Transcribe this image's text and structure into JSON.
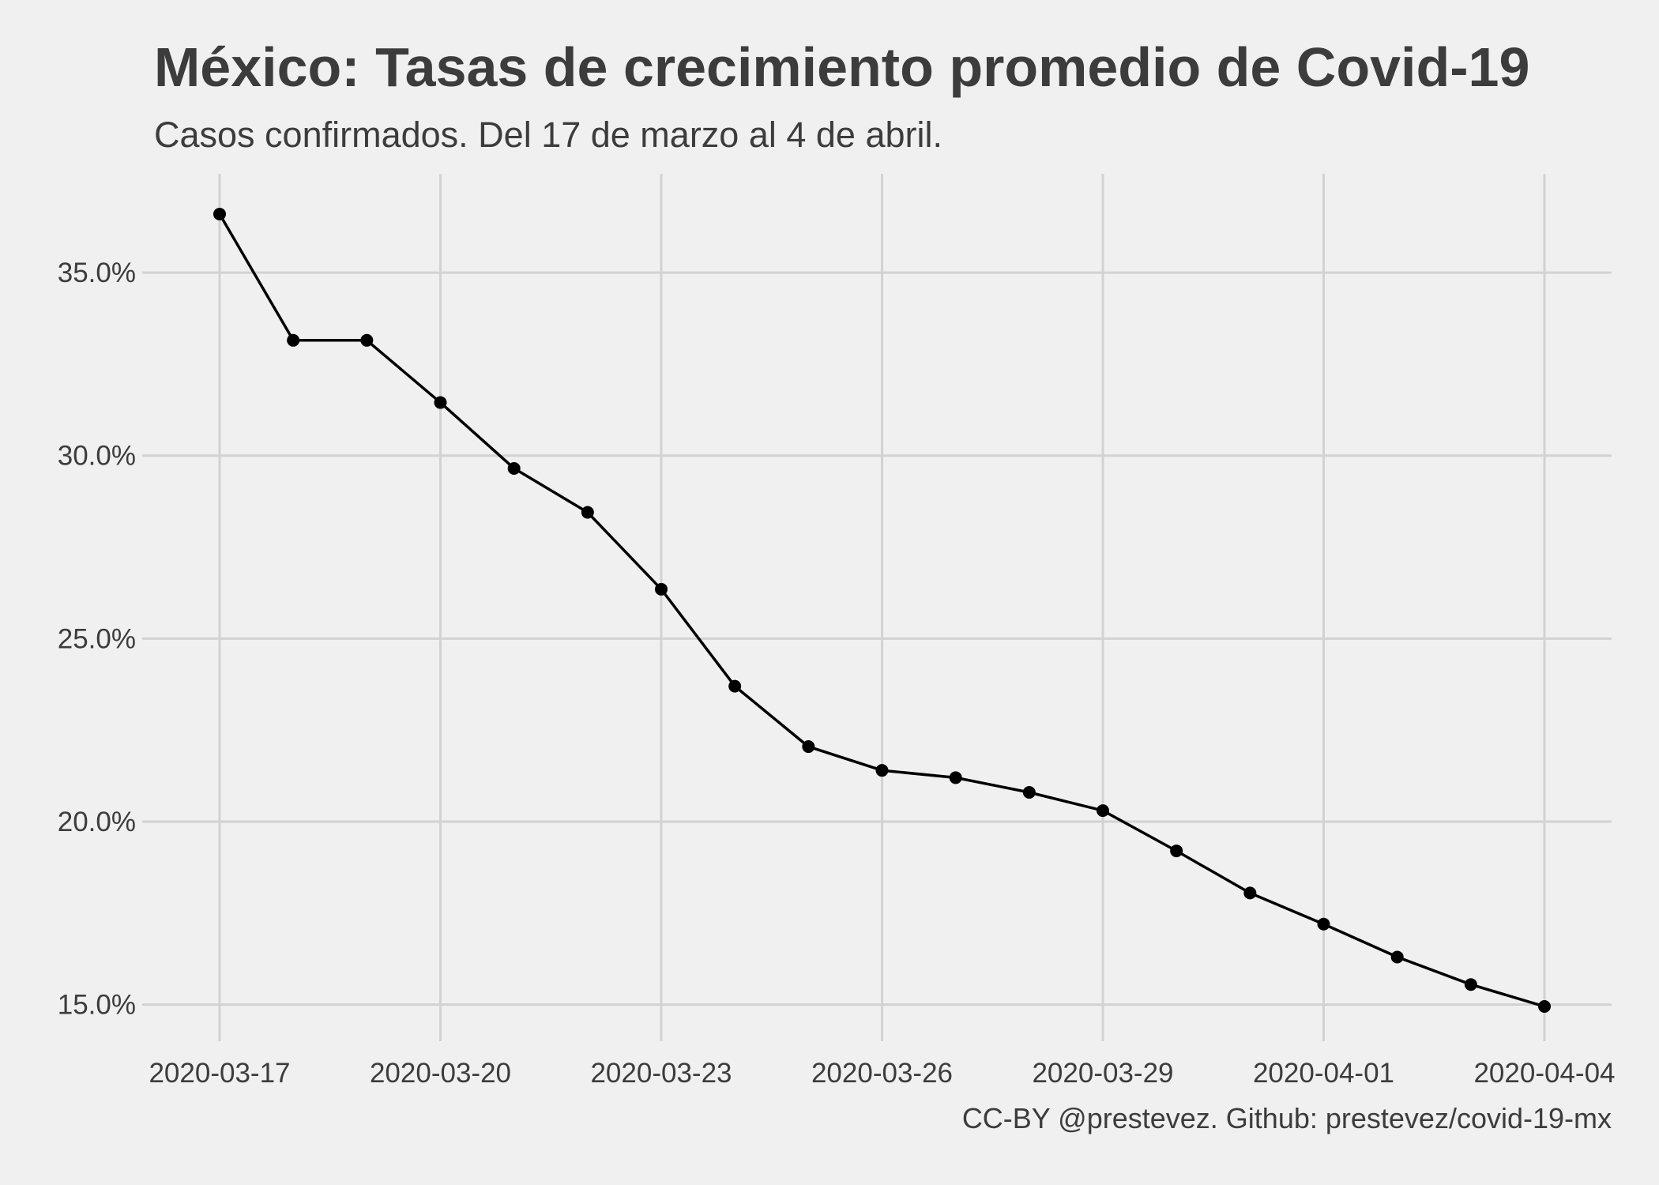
{
  "chart_data": {
    "type": "line",
    "title": "México: Tasas de crecimiento promedio de Covid-19",
    "subtitle": "Casos confirmados. Del 17 de marzo al 4 de abril.",
    "caption": "CC-BY @prestevez. Github: prestevez/covid-19-mx",
    "xlabel": "",
    "ylabel": "",
    "x": [
      "2020-03-17",
      "2020-03-18",
      "2020-03-19",
      "2020-03-20",
      "2020-03-21",
      "2020-03-22",
      "2020-03-23",
      "2020-03-24",
      "2020-03-25",
      "2020-03-26",
      "2020-03-27",
      "2020-03-28",
      "2020-03-29",
      "2020-03-30",
      "2020-03-31",
      "2020-04-01",
      "2020-04-02",
      "2020-04-03",
      "2020-04-04"
    ],
    "series": [
      {
        "values": [
          36.6,
          33.15,
          33.15,
          31.45,
          29.65,
          28.45,
          26.35,
          23.7,
          22.05,
          21.4,
          21.2,
          20.8,
          20.3,
          19.2,
          18.05,
          17.2,
          16.3,
          15.55,
          14.95
        ]
      }
    ],
    "ylim": [
      14.0,
      37.7
    ],
    "y_ticks": [
      15.0,
      20.0,
      25.0,
      30.0,
      35.0
    ],
    "y_tick_labels": [
      "15.0%",
      "20.0%",
      "25.0%",
      "30.0%",
      "35.0%"
    ],
    "x_ticks": [
      "2020-03-17",
      "2020-03-20",
      "2020-03-23",
      "2020-03-26",
      "2020-03-29",
      "2020-04-01",
      "2020-04-04"
    ],
    "grid": true,
    "colors": {
      "line": "#000000",
      "point": "#000000",
      "grid": "#d2d2d2",
      "background": "#f0f0f0",
      "text": "#3c3c3c"
    }
  }
}
